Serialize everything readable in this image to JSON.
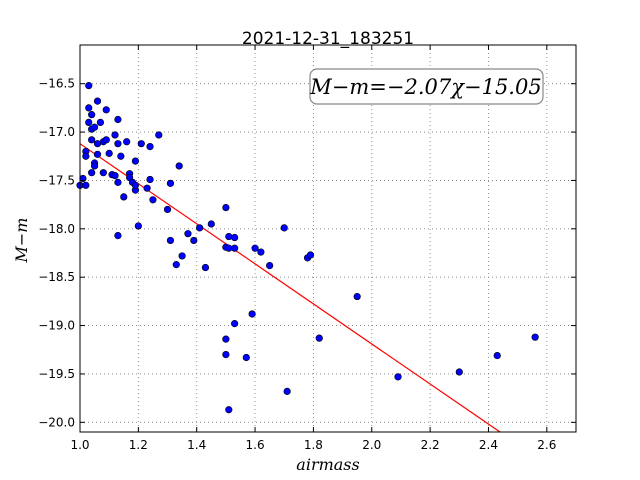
{
  "chart_data": {
    "type": "scatter",
    "title": "2021-12-31_183251",
    "xlabel": "airmass",
    "ylabel": "M−m",
    "xlim": [
      1.0,
      2.7
    ],
    "ylim": [
      -20.1,
      -16.1
    ],
    "xticks": [
      "1.0",
      "1.2",
      "1.4",
      "1.6",
      "1.8",
      "2.0",
      "2.2",
      "2.4",
      "2.6"
    ],
    "yticks": [
      "−16.5",
      "−17.0",
      "−17.5",
      "−18.0",
      "−18.5",
      "−19.0",
      "−19.5",
      "−20.0"
    ],
    "xtick_values": [
      1.0,
      1.2,
      1.4,
      1.6,
      1.8,
      2.0,
      2.2,
      2.4,
      2.6
    ],
    "ytick_values": [
      -16.5,
      -17.0,
      -17.5,
      -18.0,
      -18.5,
      -19.0,
      -19.5,
      -20.0
    ],
    "grid": true,
    "annotation": "M−m=−2.07χ−15.05",
    "fit": {
      "slope": -2.07,
      "intercept": -15.05,
      "color": "#ff0000"
    },
    "point_color": "#0000ff",
    "points": [
      [
        1.0,
        -17.55
      ],
      [
        1.01,
        -17.48
      ],
      [
        1.02,
        -17.55
      ],
      [
        1.02,
        -17.2
      ],
      [
        1.02,
        -17.25
      ],
      [
        1.03,
        -16.9
      ],
      [
        1.03,
        -16.52
      ],
      [
        1.03,
        -16.75
      ],
      [
        1.04,
        -16.82
      ],
      [
        1.04,
        -16.97
      ],
      [
        1.04,
        -17.08
      ],
      [
        1.04,
        -17.42
      ],
      [
        1.05,
        -16.95
      ],
      [
        1.05,
        -17.32
      ],
      [
        1.05,
        -17.35
      ],
      [
        1.06,
        -16.68
      ],
      [
        1.06,
        -17.12
      ],
      [
        1.06,
        -17.23
      ],
      [
        1.07,
        -16.9
      ],
      [
        1.08,
        -17.1
      ],
      [
        1.08,
        -17.42
      ],
      [
        1.09,
        -16.77
      ],
      [
        1.09,
        -17.08
      ],
      [
        1.1,
        -17.22
      ],
      [
        1.11,
        -17.44
      ],
      [
        1.12,
        -17.45
      ],
      [
        1.12,
        -17.03
      ],
      [
        1.13,
        -16.87
      ],
      [
        1.13,
        -17.12
      ],
      [
        1.13,
        -17.52
      ],
      [
        1.13,
        -18.07
      ],
      [
        1.14,
        -17.25
      ],
      [
        1.15,
        -17.67
      ],
      [
        1.16,
        -17.1
      ],
      [
        1.17,
        -17.43
      ],
      [
        1.17,
        -17.47
      ],
      [
        1.18,
        -17.52
      ],
      [
        1.19,
        -17.6
      ],
      [
        1.19,
        -17.3
      ],
      [
        1.19,
        -17.55
      ],
      [
        1.2,
        -17.97
      ],
      [
        1.21,
        -17.12
      ],
      [
        1.23,
        -17.58
      ],
      [
        1.24,
        -17.15
      ],
      [
        1.24,
        -17.49
      ],
      [
        1.25,
        -17.7
      ],
      [
        1.27,
        -17.03
      ],
      [
        1.3,
        -17.8
      ],
      [
        1.31,
        -18.12
      ],
      [
        1.31,
        -17.53
      ],
      [
        1.33,
        -18.37
      ],
      [
        1.34,
        -17.35
      ],
      [
        1.35,
        -18.28
      ],
      [
        1.37,
        -18.05
      ],
      [
        1.39,
        -18.12
      ],
      [
        1.41,
        -17.99
      ],
      [
        1.43,
        -18.4
      ],
      [
        1.45,
        -17.95
      ],
      [
        1.5,
        -17.78
      ],
      [
        1.5,
        -18.19
      ],
      [
        1.5,
        -19.14
      ],
      [
        1.5,
        -19.3
      ],
      [
        1.51,
        -18.2
      ],
      [
        1.51,
        -18.08
      ],
      [
        1.51,
        -19.87
      ],
      [
        1.53,
        -18.09
      ],
      [
        1.53,
        -18.2
      ],
      [
        1.53,
        -18.98
      ],
      [
        1.57,
        -19.33
      ],
      [
        1.59,
        -18.88
      ],
      [
        1.6,
        -18.2
      ],
      [
        1.62,
        -18.24
      ],
      [
        1.65,
        -18.38
      ],
      [
        1.7,
        -17.99
      ],
      [
        1.71,
        -19.68
      ],
      [
        1.78,
        -18.3
      ],
      [
        1.79,
        -18.27
      ],
      [
        1.82,
        -19.13
      ],
      [
        1.95,
        -18.7
      ],
      [
        2.09,
        -19.53
      ],
      [
        2.3,
        -19.48
      ],
      [
        2.43,
        -19.31
      ],
      [
        2.56,
        -19.12
      ]
    ]
  }
}
